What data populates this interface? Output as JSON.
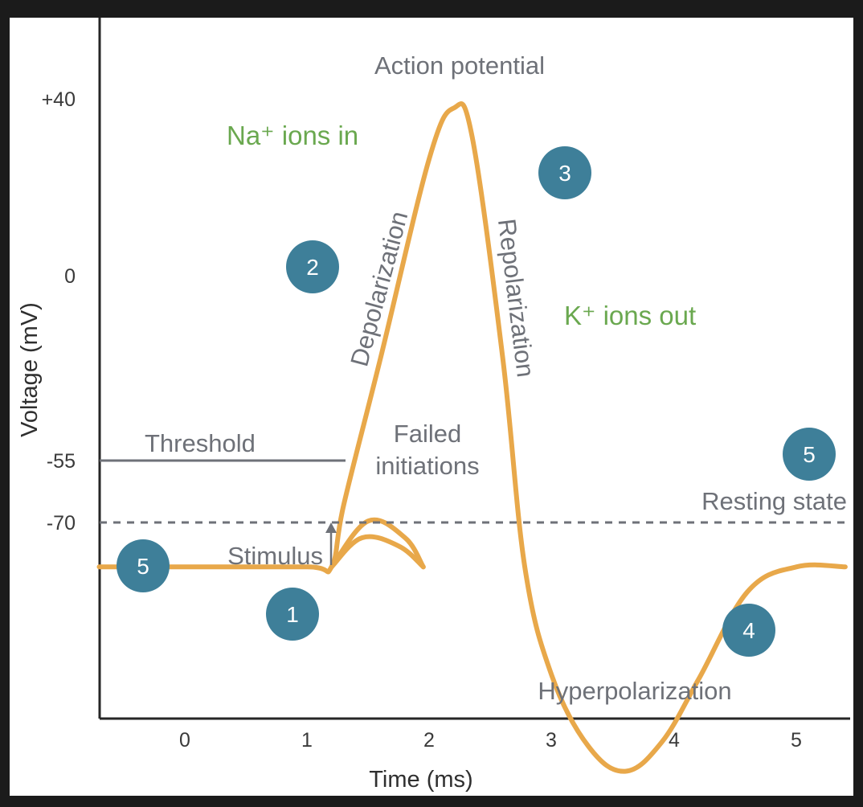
{
  "chart_data": {
    "type": "line",
    "title": "Action potential",
    "xlabel": "Time (ms)",
    "ylabel": "Voltage (mV)",
    "x_ticks": [
      "0",
      "1",
      "2",
      "3",
      "4",
      "5"
    ],
    "y_ticks": [
      "+40",
      "0",
      "-55",
      "-70"
    ],
    "xlim": [
      -0.7,
      5.4
    ],
    "series": [
      {
        "x": [
          -0.7,
          0.0,
          1.0,
          1.2,
          1.3,
          1.6,
          2.0,
          2.2,
          2.35,
          2.6,
          2.78,
          3.0,
          3.3,
          3.6,
          3.9,
          4.2,
          4.6,
          5.0,
          5.4
        ],
        "y": [
          -70,
          -70,
          -70,
          -70,
          -55,
          -20,
          28,
          40,
          33,
          -20,
          -70,
          -96,
          -113,
          -119,
          -112,
          -97,
          -76,
          -70,
          -70
        ]
      }
    ],
    "failed_initiations": [
      {
        "x": [
          1.2,
          1.5,
          1.8,
          1.95
        ],
        "y": [
          -70,
          -59,
          -63,
          -70
        ]
      },
      {
        "x": [
          1.2,
          1.45,
          1.75,
          1.95
        ],
        "y": [
          -70,
          -63,
          -65,
          -70
        ]
      }
    ],
    "threshold": {
      "label": "Threshold",
      "y": -55
    },
    "resting": {
      "label": "Resting state",
      "y": -70
    },
    "stimulus": {
      "label": "Stimulus",
      "x": 1.2
    }
  },
  "labels": {
    "na": "Na⁺ ions in",
    "k": "K⁺ ions out",
    "depolarization": "Depolarization",
    "repolarization": "Repolarization",
    "failed1": "Failed",
    "failed2": "initiations",
    "hyper": "Hyperpolarization"
  },
  "badges": [
    {
      "n": "1"
    },
    {
      "n": "2"
    },
    {
      "n": "3"
    },
    {
      "n": "4"
    },
    {
      "n": "5"
    },
    {
      "n": "5"
    }
  ],
  "colors": {
    "curve": "#e8a84a",
    "badge": "#3e7f99",
    "axis": "#262626",
    "guide": "#6e7178",
    "green": "#6aa84f"
  }
}
